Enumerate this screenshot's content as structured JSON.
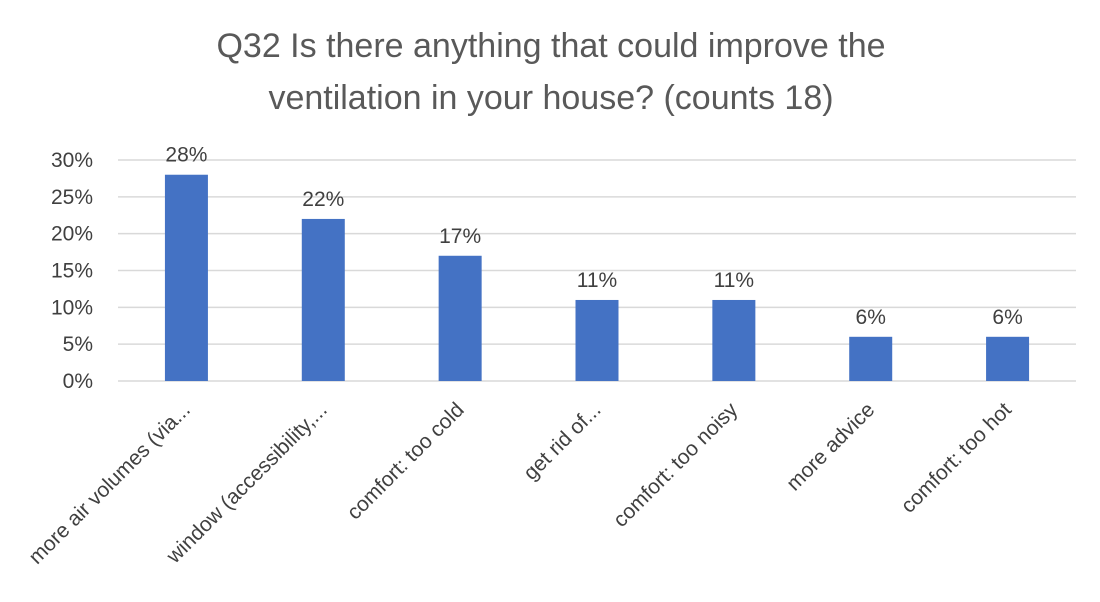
{
  "chart_data": {
    "type": "bar",
    "title_lines": [
      "Q32 Is there anything that could improve the",
      "ventilation in your house? (counts 18)"
    ],
    "categories": [
      "more air volumes (via...",
      "window (accessibility,...",
      "comfort: too cold",
      "get rid of...",
      "comfort: too noisy",
      "more advice",
      "comfort: too hot"
    ],
    "values": [
      28,
      22,
      17,
      11,
      11,
      6,
      6
    ],
    "data_labels": [
      "28%",
      "22%",
      "17%",
      "11%",
      "11%",
      "6%",
      "6%"
    ],
    "ylim": [
      0,
      30
    ],
    "yticks": [
      0,
      5,
      10,
      15,
      20,
      25,
      30
    ],
    "ytick_labels": [
      "0%",
      "5%",
      "10%",
      "15%",
      "20%",
      "25%",
      "30%"
    ],
    "bar_color": "#4472c4",
    "grid": true,
    "legend": "none"
  }
}
